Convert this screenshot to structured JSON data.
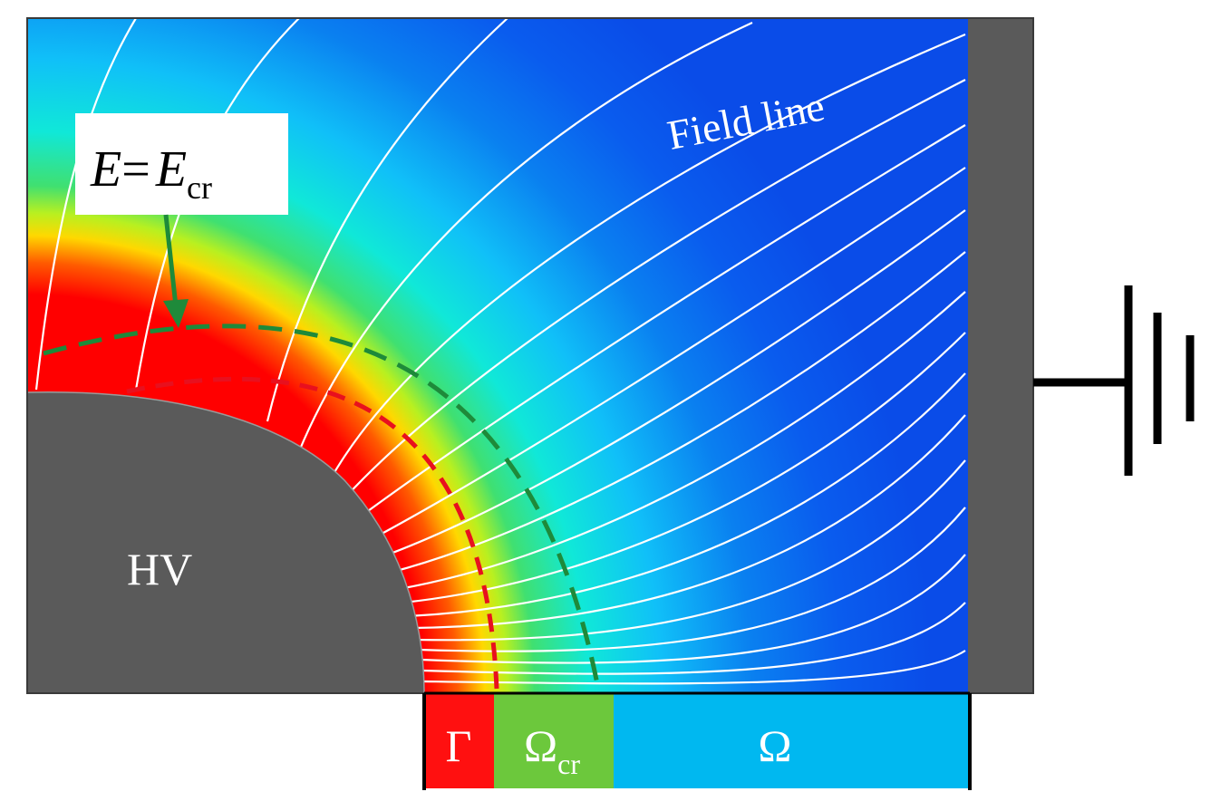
{
  "labels": {
    "field_line": "Field line",
    "hv": "HV",
    "callout": {
      "symbol": "E",
      "equals": "=",
      "rhs": "E",
      "rhs_sub": "cr"
    }
  },
  "regions": [
    {
      "key": "gamma",
      "symbol": "Γ",
      "sub": "",
      "color": "#ff1010"
    },
    {
      "key": "omega_cr",
      "symbol": "Ω",
      "sub": "cr",
      "color": "#6cc83c"
    },
    {
      "key": "omega",
      "symbol": "Ω",
      "sub": "",
      "color": "#00b8f0"
    }
  ],
  "colors": {
    "field_background": "#0a52ee",
    "electrode": "#5a5a5a",
    "field_lines": "#ffffff",
    "critical_contour": "#1e8a3a",
    "ionization_contour": "#e8101e",
    "callout_arrow": "#1e8a3a",
    "ground_symbol": "#000000"
  },
  "icons": {
    "ground": "ground-icon",
    "arrow": "arrow-icon"
  }
}
